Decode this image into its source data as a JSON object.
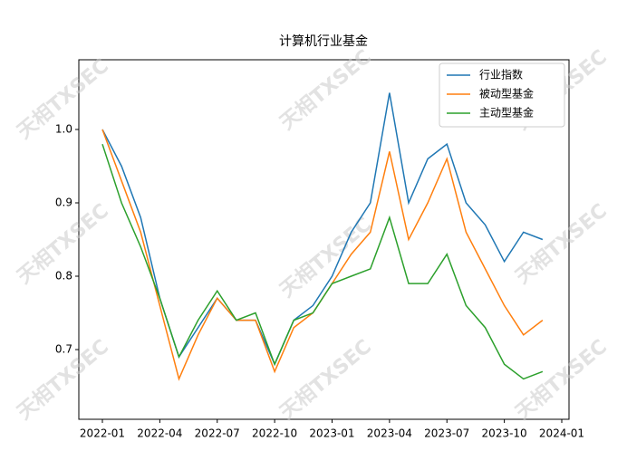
{
  "chart_data": {
    "type": "line",
    "title": "计算机行业基金",
    "x": [
      "2022-01",
      "2022-02",
      "2022-03",
      "2022-04",
      "2022-05",
      "2022-06",
      "2022-07",
      "2022-08",
      "2022-09",
      "2022-10",
      "2022-11",
      "2022-12",
      "2023-01",
      "2023-02",
      "2023-03",
      "2023-04",
      "2023-05",
      "2023-06",
      "2023-07",
      "2023-08",
      "2023-09",
      "2023-10",
      "2023-11",
      "2023-12"
    ],
    "series": [
      {
        "name": "行业指数",
        "color": "#1f77b4",
        "values": [
          1.0,
          0.95,
          0.88,
          0.77,
          0.69,
          0.73,
          0.77,
          0.74,
          0.74,
          0.68,
          0.74,
          0.76,
          0.8,
          0.86,
          0.9,
          1.05,
          0.9,
          0.96,
          0.98,
          0.9,
          0.87,
          0.82,
          0.86,
          0.85
        ]
      },
      {
        "name": "被动型基金",
        "color": "#ff7f0e",
        "values": [
          1.0,
          0.93,
          0.86,
          0.76,
          0.66,
          0.72,
          0.77,
          0.74,
          0.74,
          0.67,
          0.73,
          0.75,
          0.79,
          0.83,
          0.86,
          0.97,
          0.85,
          0.9,
          0.96,
          0.86,
          0.81,
          0.76,
          0.72,
          0.74
        ]
      },
      {
        "name": "主动型基金",
        "color": "#2ca02c",
        "values": [
          0.98,
          0.9,
          0.84,
          0.77,
          0.69,
          0.74,
          0.78,
          0.74,
          0.75,
          0.68,
          0.74,
          0.75,
          0.79,
          0.8,
          0.81,
          0.88,
          0.79,
          0.79,
          0.83,
          0.76,
          0.73,
          0.68,
          0.66,
          0.67
        ]
      }
    ],
    "xticks": [
      "2022-01",
      "2022-04",
      "2022-07",
      "2022-10",
      "2023-01",
      "2023-04",
      "2023-07",
      "2023-10",
      "2024-01"
    ],
    "ylim": [
      0.605,
      1.095
    ],
    "yticks": [
      0.7,
      0.8,
      0.9,
      {
        "value": 1.0,
        "label": "1.0"
      }
    ],
    "legend": "upper-right",
    "watermark": "天相TXSEC"
  }
}
